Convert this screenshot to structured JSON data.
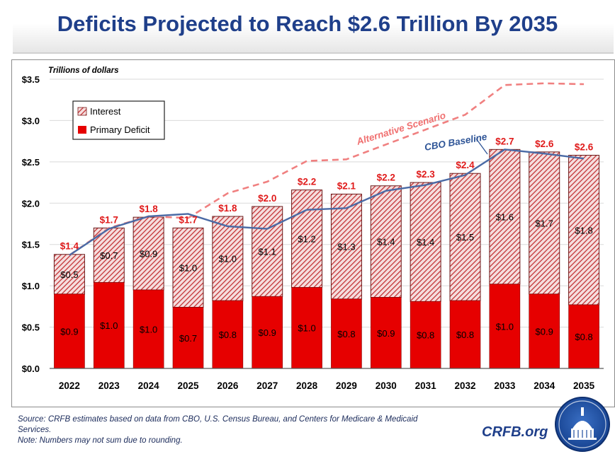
{
  "title": "Deficits Projected to Reach $2.6 Trillion By 2035",
  "footer": {
    "source": "Source: CRFB estimates based on data from CBO, U.S. Census Bureau, and Centers for Medicare & Medicaid Services.",
    "note": "Note: Numbers may not sum due to rounding."
  },
  "brand": "CRFB.org",
  "colors": {
    "primary": "#e60000",
    "interest_hatch": "#c0282b",
    "baseline_line": "#4a6aa5",
    "alt_line": "#f08080",
    "title": "#1f3f8a"
  },
  "chart_data": {
    "type": "bar",
    "stacked": true,
    "ylabel": "Trillions of dollars",
    "ylim": [
      0,
      3.5
    ],
    "yticks": [
      "$0.0",
      "$0.5",
      "$1.0",
      "$1.5",
      "$2.0",
      "$2.5",
      "$3.0",
      "$3.5"
    ],
    "categories": [
      "2022",
      "2023",
      "2024",
      "2025",
      "2026",
      "2027",
      "2028",
      "2029",
      "2030",
      "2031",
      "2032",
      "2033",
      "2034",
      "2035"
    ],
    "series": [
      {
        "name": "Primary Deficit",
        "values": [
          0.9,
          1.04,
          0.95,
          0.74,
          0.82,
          0.87,
          0.98,
          0.84,
          0.86,
          0.81,
          0.82,
          1.02,
          0.9,
          0.77
        ],
        "labels": [
          "$0.9",
          "$1.0",
          "$1.0",
          "$0.7",
          "$0.8",
          "$0.9",
          "$1.0",
          "$0.8",
          "$0.9",
          "$0.8",
          "$0.8",
          "$1.0",
          "$0.9",
          "$0.8"
        ]
      },
      {
        "name": "Interest",
        "values": [
          0.48,
          0.66,
          0.88,
          0.96,
          1.02,
          1.09,
          1.18,
          1.27,
          1.35,
          1.44,
          1.54,
          1.63,
          1.72,
          1.81
        ],
        "labels": [
          "$0.5",
          "$0.7",
          "$0.9",
          "$1.0",
          "$1.0",
          "$1.1",
          "$1.2",
          "$1.3",
          "$1.4",
          "$1.4",
          "$1.5",
          "$1.6",
          "$1.7",
          "$1.8"
        ]
      }
    ],
    "totals": [
      "$1.4",
      "$1.7",
      "$1.8",
      "$1.7",
      "$1.8",
      "$2.0",
      "$2.2",
      "$2.1",
      "$2.2",
      "$2.3",
      "$2.4",
      "$2.7",
      "$2.6",
      "$2.6"
    ],
    "lines": [
      {
        "name": "CBO Baseline",
        "values": [
          1.37,
          1.69,
          1.84,
          1.87,
          1.72,
          1.69,
          1.92,
          1.94,
          2.15,
          2.22,
          2.34,
          2.65,
          2.6,
          2.54
        ]
      },
      {
        "name": "Alternative Scenario",
        "style": "dashed",
        "values": [
          1.37,
          1.7,
          1.84,
          1.82,
          2.12,
          2.26,
          2.51,
          2.53,
          2.71,
          2.89,
          3.07,
          3.43,
          3.45,
          3.44
        ]
      }
    ],
    "legend": {
      "placement": "top-left",
      "items": [
        "Interest",
        "Primary Deficit"
      ]
    }
  }
}
